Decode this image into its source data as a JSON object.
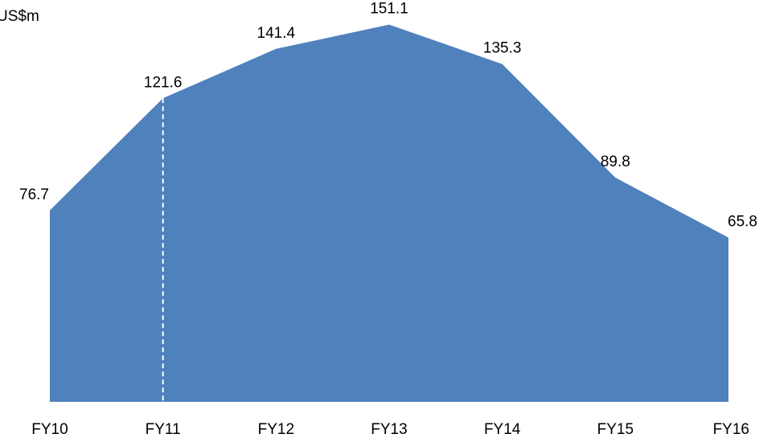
{
  "chart_data": {
    "type": "area",
    "categories": [
      "FY10",
      "FY11",
      "FY12",
      "FY13",
      "FY14",
      "FY15",
      "FY16"
    ],
    "series": [
      {
        "values": [
          76.7,
          121.6,
          141.4,
          151.1,
          135.3,
          89.8,
          65.8
        ]
      }
    ],
    "unit_label": "US$m",
    "ylim": [
      0,
      160
    ],
    "grid": false,
    "legend": "none",
    "data_labels": true,
    "divider_after_category": "FY11"
  },
  "colors": {
    "area_fill": "#4F81BD",
    "divider": "#FFFFFF",
    "text": "#000000"
  }
}
